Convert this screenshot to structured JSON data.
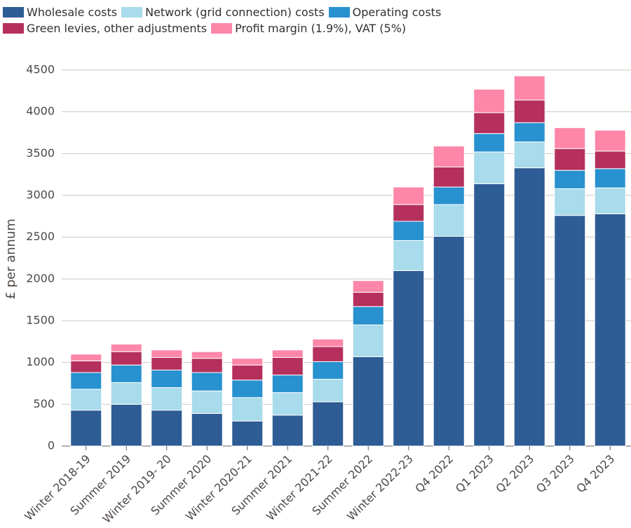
{
  "chart_data": {
    "type": "stacked_bar",
    "y_label": "£ per annum",
    "categories": [
      "Winter 2018-19",
      "Summer 2019",
      "Winter 2019- 20",
      "Summer 2020",
      "Winter 2020-21",
      "Summer 2021",
      "Winter 2021-22",
      "Summer 2022",
      "Winter 2022-23",
      "Q4 2022",
      "Q1 2023",
      "Q2 2023",
      "Q3 2023",
      "Q4 2023"
    ],
    "series": [
      {
        "name": "Wholesale costs",
        "color": "#2e5c94",
        "values": [
          430,
          500,
          430,
          390,
          300,
          370,
          530,
          1070,
          2100,
          2510,
          3140,
          3330,
          2760,
          2780
        ]
      },
      {
        "name": "Network (grid connection) costs",
        "color": "#a8dbeb",
        "values": [
          250,
          260,
          270,
          270,
          280,
          270,
          270,
          380,
          360,
          380,
          380,
          310,
          320,
          310
        ]
      },
      {
        "name": "Operating costs",
        "color": "#2891cf",
        "values": [
          200,
          210,
          210,
          220,
          210,
          210,
          210,
          220,
          230,
          210,
          220,
          230,
          220,
          230
        ]
      },
      {
        "name": "Green levies, other adjustments",
        "color": "#b5305d",
        "values": [
          140,
          160,
          150,
          170,
          180,
          210,
          180,
          170,
          200,
          240,
          250,
          270,
          260,
          210
        ]
      },
      {
        "name": "Profit margin (1.9%), VAT (5%)",
        "color": "#fd86a9",
        "values": [
          80,
          90,
          90,
          80,
          80,
          90,
          90,
          140,
          210,
          250,
          280,
          290,
          250,
          250
        ]
      }
    ],
    "ylim": [
      0,
      4500
    ],
    "yticks": [
      0,
      500,
      1000,
      1500,
      2000,
      2500,
      3000,
      3500,
      4000,
      4500
    ],
    "grid": true,
    "legend": "top"
  }
}
